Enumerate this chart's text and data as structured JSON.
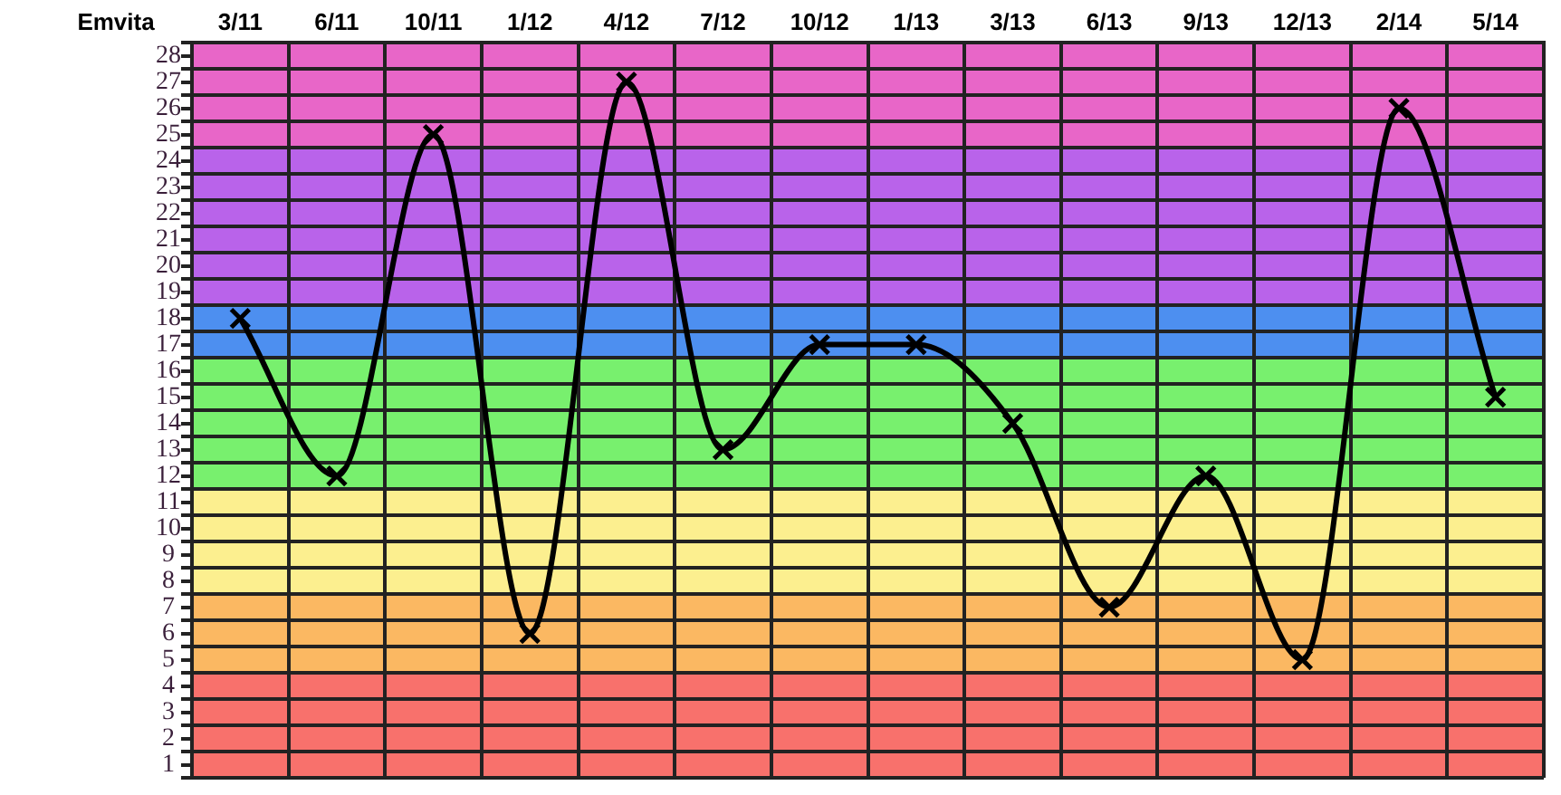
{
  "chart_data": {
    "type": "line",
    "ylabel": "Emvita",
    "categories": [
      "3/11",
      "6/11",
      "10/11",
      "1/12",
      "4/12",
      "7/12",
      "10/12",
      "1/13",
      "3/13",
      "6/13",
      "9/13",
      "12/13",
      "2/14",
      "5/14"
    ],
    "series": [
      {
        "color": "#000000",
        "values": [
          18,
          12,
          25,
          6,
          27,
          13,
          17,
          17,
          14,
          7,
          12,
          5,
          26,
          15
        ]
      }
    ],
    "ylim": [
      0.5,
      28.5
    ],
    "yticks": [
      {
        "value": 0.5,
        "label": null
      },
      1,
      {
        "value": 1.5,
        "label": null
      },
      2,
      {
        "value": 2.5,
        "label": null
      },
      3,
      {
        "value": 3.5,
        "label": null
      },
      4,
      {
        "value": 4.5,
        "label": null
      },
      5,
      {
        "value": 5.5,
        "label": null
      },
      6,
      {
        "value": 6.5,
        "label": null
      },
      7,
      {
        "value": 7.5,
        "label": null
      },
      8,
      {
        "value": 8.5,
        "label": null
      },
      9,
      {
        "value": 9.5,
        "label": null
      },
      10,
      {
        "value": 10.5,
        "label": null
      },
      11,
      {
        "value": 11.5,
        "label": null
      },
      12,
      {
        "value": 12.5,
        "label": null
      },
      13,
      {
        "value": 13.5,
        "label": null
      },
      14,
      {
        "value": 14.5,
        "label": null
      },
      15,
      {
        "value": 15.5,
        "label": null
      },
      16,
      {
        "value": 16.5,
        "label": null
      },
      17,
      {
        "value": 17.5,
        "label": null
      },
      18,
      {
        "value": 18.5,
        "label": null
      },
      19,
      {
        "value": 19.5,
        "label": null
      },
      20,
      {
        "value": 20.5,
        "label": null
      },
      21,
      {
        "value": 21.5,
        "label": null
      },
      22,
      {
        "value": 22.5,
        "label": null
      },
      23,
      {
        "value": 23.5,
        "label": null
      },
      24,
      {
        "value": 24.5,
        "label": null
      },
      25,
      {
        "value": 25.5,
        "label": null
      },
      26,
      {
        "value": 26.5,
        "label": null
      },
      27,
      {
        "value": 27.5,
        "label": null
      },
      28,
      {
        "value": 28.5,
        "label": null
      }
    ],
    "bands": [
      {
        "axis": "y",
        "from": 0.5,
        "to": 4.5,
        "color": "#f8716c"
      },
      {
        "axis": "y",
        "from": 4.5,
        "to": 7.5,
        "color": "#fbb862"
      },
      {
        "axis": "y",
        "from": 7.5,
        "to": 11.5,
        "color": "#fcef8f"
      },
      {
        "axis": "y",
        "from": 11.5,
        "to": 16.5,
        "color": "#78f06e"
      },
      {
        "axis": "y",
        "from": 16.5,
        "to": 18.5,
        "color": "#4d8ff0"
      },
      {
        "axis": "y",
        "from": 18.5,
        "to": 24.5,
        "color": "#b963ea"
      },
      {
        "axis": "y",
        "from": 24.5,
        "to": 28.5,
        "color": "#e866c8"
      }
    ],
    "grid": true,
    "legend": false,
    "marker": "cross",
    "line_style": "solid"
  }
}
